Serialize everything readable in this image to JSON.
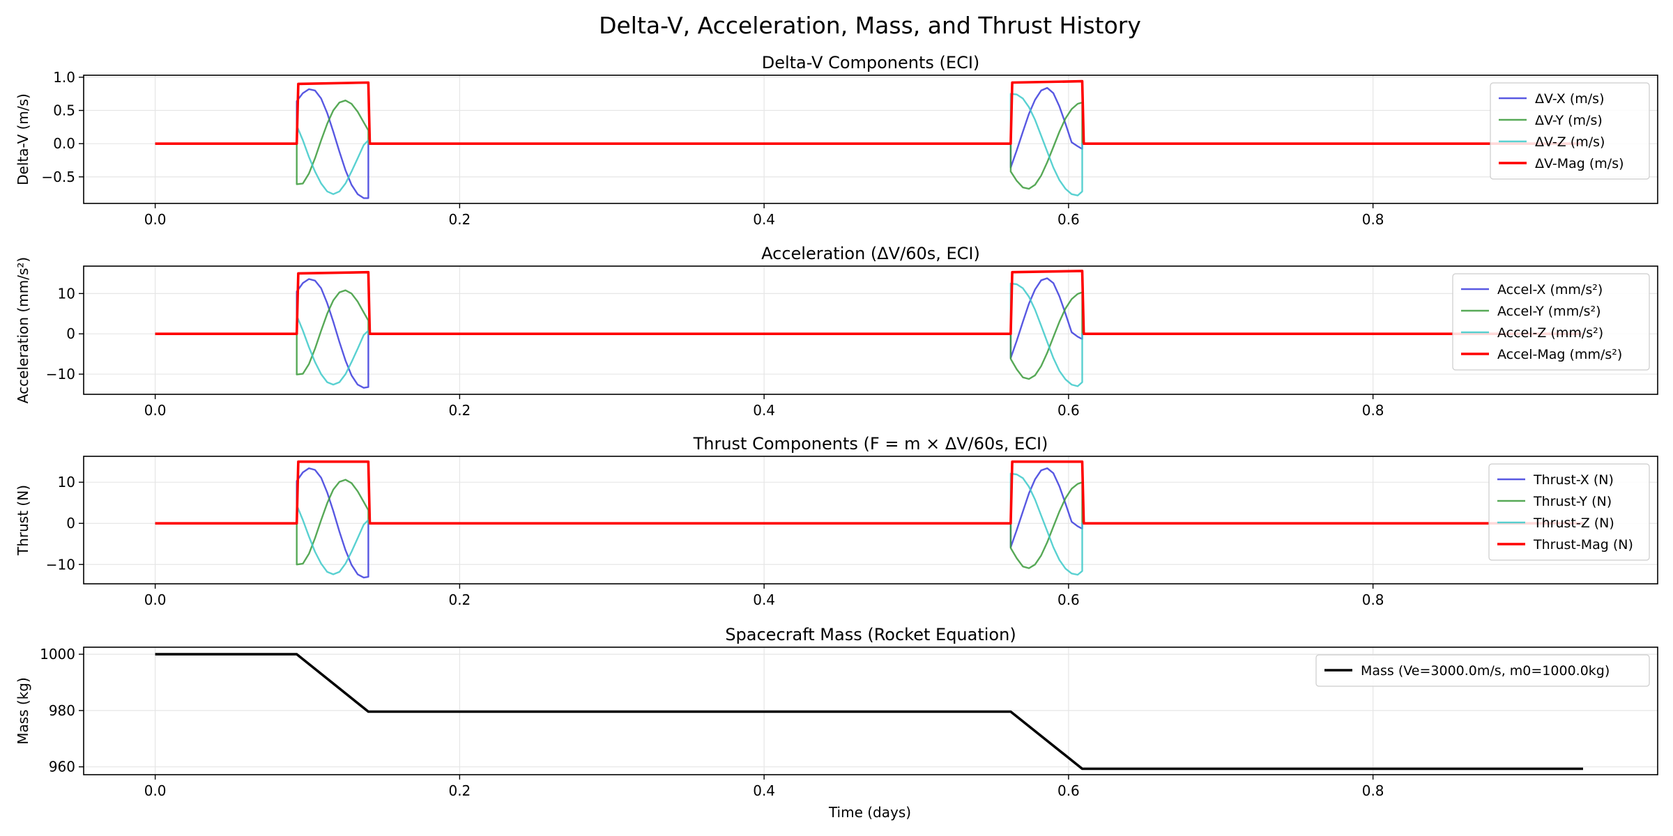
{
  "figure_title": "Delta-V, Acceleration, Mass, and Thrust History",
  "x_axis_label": "Time (days)",
  "colors": {
    "x": "#3b3bdd",
    "y": "#3a9a3a",
    "z": "#3cc9c9",
    "mag": "#ff0000",
    "mass": "#000000",
    "grid": "#e6e6e6"
  },
  "chart_data": [
    {
      "type": "line",
      "title": "Delta-V Components (ECI)",
      "xlabel": "",
      "ylabel": "Delta-V (m/s)",
      "xlim": [
        -0.047,
        0.987
      ],
      "ylim": [
        -0.9,
        1.03
      ],
      "xticks": [
        0.0,
        0.2,
        0.4,
        0.6,
        0.8
      ],
      "xtick_labels": [
        "0.0",
        "0.2",
        "0.4",
        "0.6",
        "0.8"
      ],
      "yticks": [
        -0.5,
        0.0,
        0.5,
        1.0
      ],
      "ytick_labels": [
        "−0.5",
        "0.0",
        "0.5",
        "1.0"
      ],
      "legend_position": "top-right",
      "grid": true,
      "series": [
        {
          "name": "ΔV-X (m/s)",
          "color_key": "x",
          "x": [
            0.0,
            0.093,
            0.093,
            0.097,
            0.101,
            0.105,
            0.109,
            0.113,
            0.117,
            0.121,
            0.125,
            0.129,
            0.133,
            0.137,
            0.14,
            0.14,
            0.562,
            0.562,
            0.566,
            0.57,
            0.574,
            0.578,
            0.582,
            0.586,
            0.59,
            0.594,
            0.598,
            0.602,
            0.606,
            0.609,
            0.609,
            0.938
          ],
          "y": [
            0,
            0,
            0.64,
            0.76,
            0.82,
            0.8,
            0.68,
            0.46,
            0.18,
            -0.12,
            -0.4,
            -0.62,
            -0.76,
            -0.82,
            -0.82,
            0,
            0,
            -0.36,
            -0.1,
            0.18,
            0.45,
            0.66,
            0.8,
            0.84,
            0.76,
            0.56,
            0.3,
            0.02,
            -0.04,
            -0.08,
            0,
            0
          ]
        },
        {
          "name": "ΔV-Y (m/s)",
          "color_key": "y",
          "x": [
            0.0,
            0.093,
            0.093,
            0.097,
            0.101,
            0.105,
            0.109,
            0.113,
            0.117,
            0.121,
            0.125,
            0.129,
            0.133,
            0.137,
            0.14,
            0.14,
            0.562,
            0.562,
            0.566,
            0.57,
            0.574,
            0.578,
            0.582,
            0.586,
            0.59,
            0.594,
            0.598,
            0.602,
            0.606,
            0.609,
            0.609,
            0.938
          ],
          "y": [
            0,
            0,
            -0.61,
            -0.6,
            -0.45,
            -0.22,
            0.05,
            0.3,
            0.5,
            0.62,
            0.65,
            0.6,
            0.48,
            0.32,
            0.2,
            0,
            0,
            -0.42,
            -0.56,
            -0.66,
            -0.68,
            -0.62,
            -0.48,
            -0.28,
            -0.05,
            0.18,
            0.38,
            0.52,
            0.6,
            0.62,
            0,
            0
          ]
        },
        {
          "name": "ΔV-Z (m/s)",
          "color_key": "z",
          "x": [
            0.0,
            0.093,
            0.093,
            0.097,
            0.101,
            0.105,
            0.109,
            0.113,
            0.117,
            0.121,
            0.125,
            0.129,
            0.133,
            0.137,
            0.14,
            0.14,
            0.562,
            0.562,
            0.566,
            0.57,
            0.574,
            0.578,
            0.582,
            0.586,
            0.59,
            0.594,
            0.598,
            0.602,
            0.606,
            0.609,
            0.609,
            0.938
          ],
          "y": [
            0,
            0,
            0.27,
            0.05,
            -0.2,
            -0.42,
            -0.6,
            -0.72,
            -0.76,
            -0.72,
            -0.6,
            -0.42,
            -0.22,
            -0.02,
            0.05,
            0,
            0,
            0.75,
            0.74,
            0.68,
            0.55,
            0.36,
            0.12,
            -0.12,
            -0.36,
            -0.55,
            -0.68,
            -0.76,
            -0.78,
            -0.72,
            0,
            0
          ]
        },
        {
          "name": "ΔV-Mag (m/s)",
          "color_key": "mag",
          "x": [
            0.0,
            0.093,
            0.094,
            0.14,
            0.141,
            0.562,
            0.563,
            0.609,
            0.61,
            0.938
          ],
          "y": [
            0,
            0,
            0.9,
            0.92,
            0,
            0,
            0.92,
            0.94,
            0,
            0
          ]
        }
      ]
    },
    {
      "type": "line",
      "title": "Acceleration (ΔV/60s, ECI)",
      "xlabel": "",
      "ylabel": "Acceleration (mm/s²)",
      "xlim": [
        -0.047,
        0.987
      ],
      "ylim": [
        -15,
        16.8
      ],
      "xticks": [
        0.0,
        0.2,
        0.4,
        0.6,
        0.8
      ],
      "xtick_labels": [
        "0.0",
        "0.2",
        "0.4",
        "0.6",
        "0.8"
      ],
      "yticks": [
        -10,
        0,
        10
      ],
      "ytick_labels": [
        "−10",
        "0",
        "10"
      ],
      "legend_position": "top-right",
      "grid": true,
      "series": [
        {
          "name": "Accel-X (mm/s²)",
          "color_key": "x",
          "x": [
            0.0,
            0.093,
            0.093,
            0.097,
            0.101,
            0.105,
            0.109,
            0.113,
            0.117,
            0.121,
            0.125,
            0.129,
            0.133,
            0.137,
            0.14,
            0.14,
            0.562,
            0.562,
            0.566,
            0.57,
            0.574,
            0.578,
            0.582,
            0.586,
            0.59,
            0.594,
            0.598,
            0.602,
            0.606,
            0.609,
            0.609,
            0.938
          ],
          "y": [
            0,
            0,
            10.5,
            12.6,
            13.6,
            13.2,
            11.3,
            7.6,
            3.0,
            -2.0,
            -6.6,
            -10.3,
            -12.6,
            -13.4,
            -13.2,
            0,
            0,
            -6.0,
            -1.7,
            3.0,
            7.5,
            11.0,
            13.3,
            13.8,
            12.6,
            9.3,
            5.0,
            0.4,
            -0.7,
            -1.3,
            0,
            0
          ]
        },
        {
          "name": "Accel-Y (mm/s²)",
          "color_key": "y",
          "x": [
            0.0,
            0.093,
            0.093,
            0.097,
            0.101,
            0.105,
            0.109,
            0.113,
            0.117,
            0.121,
            0.125,
            0.129,
            0.133,
            0.137,
            0.14,
            0.14,
            0.562,
            0.562,
            0.566,
            0.57,
            0.574,
            0.578,
            0.582,
            0.586,
            0.59,
            0.594,
            0.598,
            0.602,
            0.606,
            0.609,
            0.609,
            0.938
          ],
          "y": [
            0,
            0,
            -10.1,
            -9.9,
            -7.5,
            -3.7,
            0.8,
            5.0,
            8.3,
            10.3,
            10.8,
            10.0,
            8.0,
            5.3,
            3.3,
            0,
            0,
            -6.2,
            -8.8,
            -10.8,
            -11.2,
            -10.3,
            -8.0,
            -4.7,
            -0.8,
            3.0,
            6.3,
            8.6,
            9.9,
            10.3,
            0,
            0
          ]
        },
        {
          "name": "Accel-Z (mm/s²)",
          "color_key": "z",
          "x": [
            0.0,
            0.093,
            0.093,
            0.097,
            0.101,
            0.105,
            0.109,
            0.113,
            0.117,
            0.121,
            0.125,
            0.129,
            0.133,
            0.137,
            0.14,
            0.14,
            0.562,
            0.562,
            0.566,
            0.57,
            0.574,
            0.578,
            0.582,
            0.586,
            0.59,
            0.594,
            0.598,
            0.602,
            0.606,
            0.609,
            0.609,
            0.938
          ],
          "y": [
            0,
            0,
            4.5,
            0.8,
            -3.3,
            -7.0,
            -10.0,
            -12.0,
            -12.6,
            -12.0,
            -10.0,
            -7.0,
            -3.7,
            -0.3,
            0.8,
            0,
            0,
            12.5,
            12.3,
            11.3,
            9.2,
            6.0,
            2.0,
            -2.0,
            -6.0,
            -9.2,
            -11.3,
            -12.6,
            -13.0,
            -12.0,
            0,
            0
          ]
        },
        {
          "name": "Accel-Mag (mm/s²)",
          "color_key": "mag",
          "x": [
            0.0,
            0.093,
            0.094,
            0.14,
            0.141,
            0.562,
            0.563,
            0.609,
            0.61,
            0.938
          ],
          "y": [
            0,
            0,
            15.0,
            15.3,
            0,
            0,
            15.3,
            15.6,
            0,
            0
          ]
        }
      ]
    },
    {
      "type": "line",
      "title": "Thrust Components (F = m × ΔV/60s, ECI)",
      "xlabel": "",
      "ylabel": "Thrust (N)",
      "xlim": [
        -0.047,
        0.987
      ],
      "ylim": [
        -14.7,
        16.3
      ],
      "xticks": [
        0.0,
        0.2,
        0.4,
        0.6,
        0.8
      ],
      "xtick_labels": [
        "0.0",
        "0.2",
        "0.4",
        "0.6",
        "0.8"
      ],
      "yticks": [
        -10,
        0,
        10
      ],
      "ytick_labels": [
        "−10",
        "0",
        "10"
      ],
      "legend_position": "top-right",
      "grid": true,
      "series": [
        {
          "name": "Thrust-X (N)",
          "color_key": "x",
          "x": [
            0.0,
            0.093,
            0.093,
            0.097,
            0.101,
            0.105,
            0.109,
            0.113,
            0.117,
            0.121,
            0.125,
            0.129,
            0.133,
            0.137,
            0.14,
            0.14,
            0.562,
            0.562,
            0.566,
            0.57,
            0.574,
            0.578,
            0.582,
            0.586,
            0.59,
            0.594,
            0.598,
            0.602,
            0.606,
            0.609,
            0.609,
            0.938
          ],
          "y": [
            0,
            0,
            10.3,
            12.4,
            13.4,
            13.0,
            11.1,
            7.5,
            3.0,
            -2.0,
            -6.5,
            -10.1,
            -12.4,
            -13.2,
            -13.0,
            0,
            0,
            -5.8,
            -1.6,
            2.9,
            7.3,
            10.7,
            12.9,
            13.4,
            12.2,
            9.0,
            4.8,
            0.4,
            -0.7,
            -1.3,
            0,
            0
          ]
        },
        {
          "name": "Thrust-Y (N)",
          "color_key": "y",
          "x": [
            0.0,
            0.093,
            0.093,
            0.097,
            0.101,
            0.105,
            0.109,
            0.113,
            0.117,
            0.121,
            0.125,
            0.129,
            0.133,
            0.137,
            0.14,
            0.14,
            0.562,
            0.562,
            0.566,
            0.57,
            0.574,
            0.578,
            0.582,
            0.586,
            0.59,
            0.594,
            0.598,
            0.602,
            0.606,
            0.609,
            0.609,
            0.938
          ],
          "y": [
            0,
            0,
            -10.0,
            -9.8,
            -7.4,
            -3.6,
            0.8,
            4.9,
            8.2,
            10.1,
            10.6,
            9.8,
            7.8,
            5.2,
            3.2,
            0,
            0,
            -6.0,
            -8.5,
            -10.5,
            -10.9,
            -10.0,
            -7.8,
            -4.6,
            -0.8,
            2.9,
            6.1,
            8.4,
            9.6,
            10.0,
            0,
            0
          ]
        },
        {
          "name": "Thrust-Z (N)",
          "color_key": "z",
          "x": [
            0.0,
            0.093,
            0.093,
            0.097,
            0.101,
            0.105,
            0.109,
            0.113,
            0.117,
            0.121,
            0.125,
            0.129,
            0.133,
            0.137,
            0.14,
            0.14,
            0.562,
            0.562,
            0.566,
            0.57,
            0.574,
            0.578,
            0.582,
            0.586,
            0.59,
            0.594,
            0.598,
            0.602,
            0.606,
            0.609,
            0.609,
            0.938
          ],
          "y": [
            0,
            0,
            4.4,
            0.8,
            -3.2,
            -6.9,
            -9.8,
            -11.8,
            -12.4,
            -11.8,
            -9.8,
            -6.9,
            -3.6,
            -0.3,
            0.8,
            0,
            0,
            12.1,
            11.9,
            11.0,
            8.9,
            5.8,
            1.9,
            -1.9,
            -5.8,
            -8.9,
            -11.0,
            -12.2,
            -12.5,
            -11.6,
            0,
            0
          ]
        },
        {
          "name": "Thrust-Mag (N)",
          "color_key": "mag",
          "x": [
            0.0,
            0.093,
            0.094,
            0.14,
            0.141,
            0.562,
            0.563,
            0.609,
            0.61,
            0.938
          ],
          "y": [
            0,
            0,
            15.0,
            15.0,
            0,
            0,
            15.0,
            15.0,
            0,
            0
          ]
        }
      ]
    },
    {
      "type": "line",
      "title": "Spacecraft Mass (Rocket Equation)",
      "xlabel": "Time (days)",
      "ylabel": "Mass (kg)",
      "xlim": [
        -0.047,
        0.987
      ],
      "ylim": [
        957.2,
        1002.5
      ],
      "xticks": [
        0.0,
        0.2,
        0.4,
        0.6,
        0.8
      ],
      "xtick_labels": [
        "0.0",
        "0.2",
        "0.4",
        "0.6",
        "0.8"
      ],
      "yticks": [
        960,
        980,
        1000
      ],
      "ytick_labels": [
        "960",
        "980",
        "1000"
      ],
      "legend_position": "top-right",
      "grid": true,
      "series": [
        {
          "name": "Mass (Ve=3000.0m/s, m0=1000.0kg)",
          "color_key": "mass",
          "x": [
            0.0,
            0.093,
            0.14,
            0.562,
            0.609,
            0.938
          ],
          "y": [
            1000.0,
            1000.0,
            979.6,
            979.6,
            959.3,
            959.3
          ]
        }
      ]
    }
  ]
}
